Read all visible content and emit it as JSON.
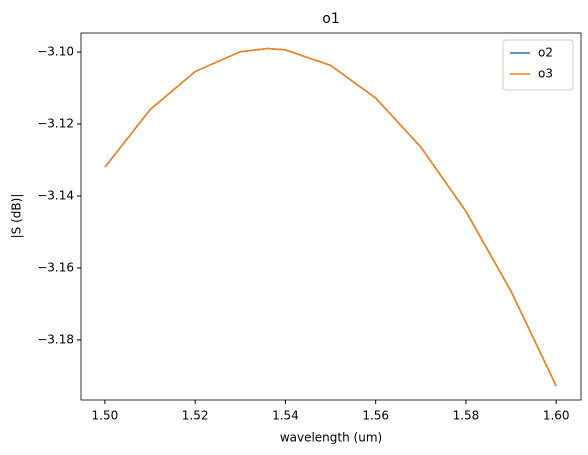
{
  "chart_data": {
    "type": "line",
    "title": "o1",
    "xlabel": "wavelength (um)",
    "ylabel": "|S (dB)|",
    "x": [
      1.5,
      1.51,
      1.52,
      1.53,
      1.536,
      1.54,
      1.55,
      1.56,
      1.57,
      1.58,
      1.59,
      1.6
    ],
    "series": [
      {
        "name": "o2",
        "color": "#1f77b4",
        "values": [
          -3.132,
          -3.116,
          -3.1054,
          -3.0999,
          -3.099,
          -3.0994,
          -3.1037,
          -3.1128,
          -3.1264,
          -3.1443,
          -3.1665,
          -3.1928
        ]
      },
      {
        "name": "o3",
        "color": "#ff7f0e",
        "values": [
          -3.132,
          -3.116,
          -3.1054,
          -3.0999,
          -3.099,
          -3.0994,
          -3.1037,
          -3.1128,
          -3.1264,
          -3.1443,
          -3.1665,
          -3.1928
        ]
      }
    ],
    "xlim": [
      1.4947,
      1.6055
    ],
    "xticks": [
      {
        "value": 1.5,
        "label": "1.50"
      },
      {
        "value": 1.52,
        "label": "1.52"
      },
      {
        "value": 1.54,
        "label": "1.54"
      },
      {
        "value": 1.56,
        "label": "1.56"
      },
      {
        "value": 1.58,
        "label": "1.58"
      },
      {
        "value": 1.6,
        "label": "1.60"
      }
    ],
    "ylim": [
      -3.1967,
      -3.0947
    ],
    "yticks": [
      {
        "value": -3.18,
        "label": "−3.18"
      },
      {
        "value": -3.16,
        "label": "−3.16"
      },
      {
        "value": -3.14,
        "label": "−3.14"
      },
      {
        "value": -3.12,
        "label": "−3.12"
      },
      {
        "value": -3.1,
        "label": "−3.10"
      }
    ],
    "legend": "upper right",
    "grid": false
  }
}
